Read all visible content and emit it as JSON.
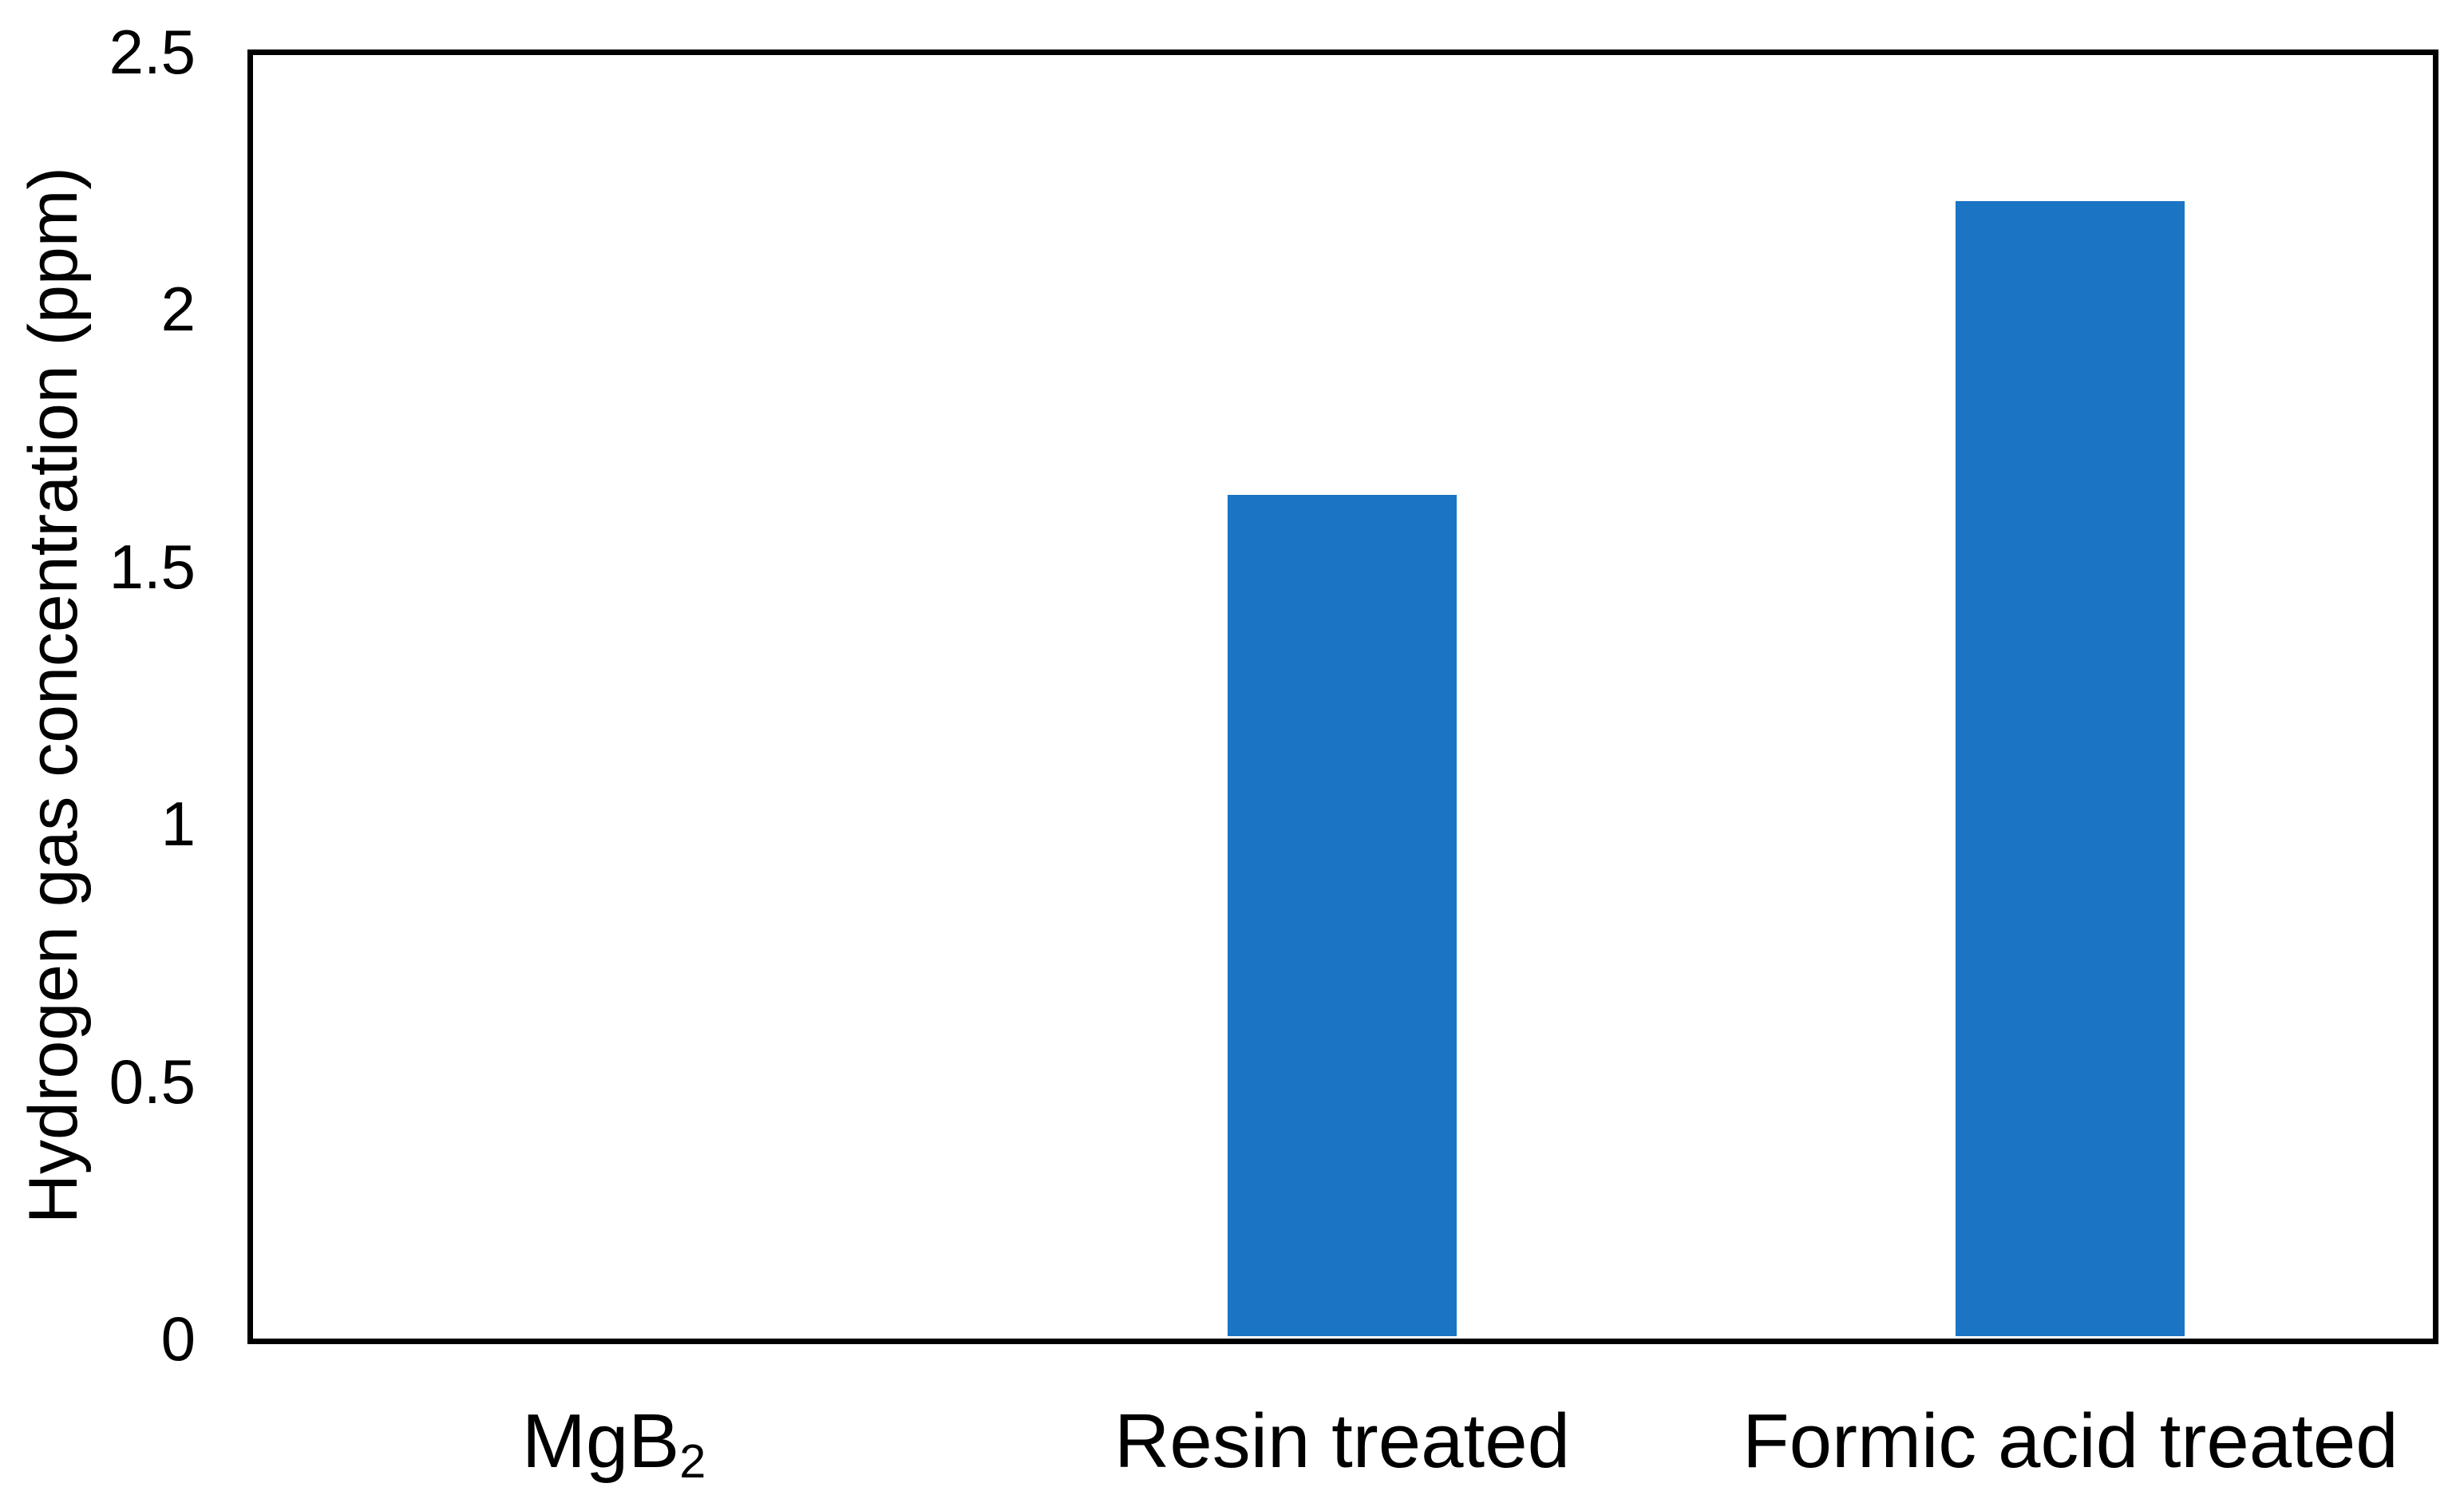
{
  "chart_data": {
    "type": "bar",
    "title": "",
    "xlabel": "",
    "ylabel": "Hydrogen gas concentration (ppm)",
    "categories": [
      {
        "text": "MgB",
        "sub": "2"
      },
      {
        "text": "Resin treated",
        "sub": ""
      },
      {
        "text": "Formic acid treated",
        "sub": ""
      }
    ],
    "values": [
      0,
      1.64,
      2.21
    ],
    "ylim": [
      0,
      2.5
    ],
    "yticks": [
      {
        "value": 0,
        "label": "0"
      },
      {
        "value": 0.5,
        "label": "0.5"
      },
      {
        "value": 1,
        "label": "1"
      },
      {
        "value": 1.5,
        "label": "1.5"
      },
      {
        "value": 2,
        "label": "2"
      },
      {
        "value": 2.5,
        "label": "2.5"
      }
    ],
    "legend": null,
    "grid": false,
    "legend_position": "none"
  },
  "colors": {
    "bar_fill": "#1b74c4",
    "axis_line": "#000000",
    "background": "#ffffff",
    "text": "#000000"
  }
}
